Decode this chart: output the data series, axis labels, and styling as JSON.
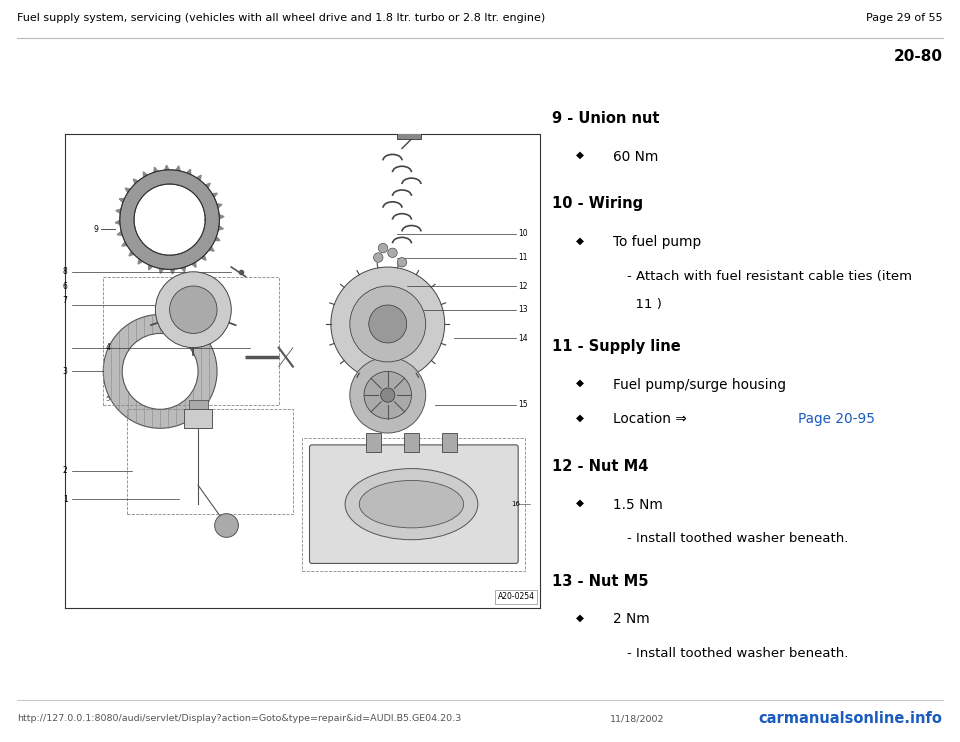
{
  "header_left": "Fuel supply system, servicing (vehicles with all wheel drive and 1.8 ltr. turbo or 2.8 ltr. engine)",
  "header_right": "Page 29 of 55",
  "page_label": "20-80",
  "footer_url": "http://127.0.0.1:8080/audi/servlet/Display?action=Goto&type=repair&id=AUDI.B5.GE04.20.3",
  "footer_date": "11/18/2002",
  "footer_watermark": "carmanualsonline.info",
  "image_label": "A20-0254",
  "bg_color": "#ffffff",
  "header_line_color": "#aaaaaa",
  "text_color": "#000000",
  "link_color": "#1a5bbf",
  "items": [
    {
      "number": "9",
      "title": "Union nut",
      "bullets": [
        {
          "indent": 1,
          "diamond": true,
          "text": "60 Nm",
          "link": null
        }
      ]
    },
    {
      "number": "10",
      "title": "Wiring",
      "bullets": [
        {
          "indent": 1,
          "diamond": true,
          "text": "To fuel pump",
          "link": null
        },
        {
          "indent": 2,
          "diamond": false,
          "text": "- Attach with fuel resistant cable ties (item",
          "link": null
        },
        {
          "indent": 2,
          "diamond": false,
          "text": "  11 )",
          "link": null
        }
      ]
    },
    {
      "number": "11",
      "title": "Supply line",
      "bullets": [
        {
          "indent": 1,
          "diamond": true,
          "text": "Fuel pump/surge housing",
          "link": null
        },
        {
          "indent": 1,
          "diamond": true,
          "text": "Location ⇒ ",
          "link": "Page 20-95"
        }
      ]
    },
    {
      "number": "12",
      "title": "Nut M4",
      "bullets": [
        {
          "indent": 1,
          "diamond": true,
          "text": "1.5 Nm",
          "link": null
        },
        {
          "indent": 2,
          "diamond": false,
          "text": "- Install toothed washer beneath.",
          "link": null
        }
      ]
    },
    {
      "number": "13",
      "title": "Nut M5",
      "bullets": [
        {
          "indent": 1,
          "diamond": true,
          "text": "2 Nm",
          "link": null
        },
        {
          "indent": 2,
          "diamond": false,
          "text": "- Install toothed washer beneath.",
          "link": null
        }
      ]
    }
  ]
}
